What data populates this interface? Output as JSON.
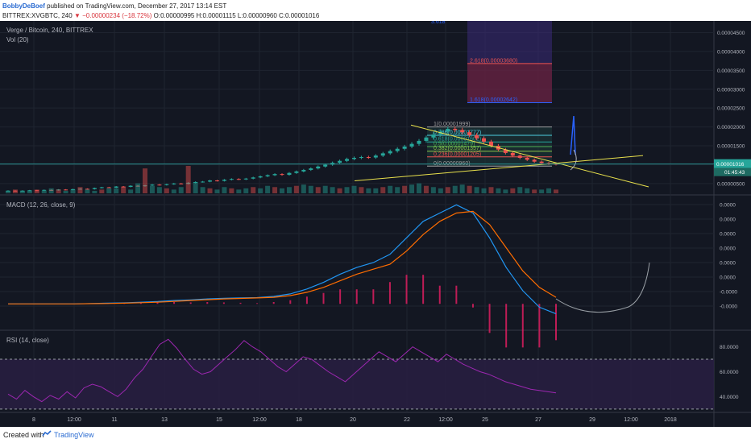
{
  "header": {
    "author": "BobbyDeBoef",
    "published_text": "published on TradingView.com, December 27, 2017 13:14 EST",
    "symbol": "BITTREX:XVGBTC, 240",
    "change_arrow": "▼",
    "change": "−0.00000234 (−18.72%)",
    "ohlc": "O:0.00000995 H:0.00001115 L:0.00000960 C:0.00001016"
  },
  "panes": {
    "main_title": "Verge / Bitcoin, 240, BITTREX",
    "vol_title": "Vol (20)",
    "macd_title": "MACD (12, 26, close, 9)",
    "rsi_title": "RSI (14, close)"
  },
  "footer": {
    "created_with": "Created with",
    "brand": "TradingView",
    "logo_icon": "tradingview-logo-icon"
  },
  "colors": {
    "background": "#131722",
    "up": "#26a69a",
    "down": "#ef5350",
    "macd_line": "#2196f3",
    "signal_line": "#ff6d00",
    "histogram": "#e91e63",
    "rsi_line": "#9c27b0",
    "trendline": "#e8e04c",
    "price_line": "#2a8f8f",
    "forecast": "#9aa0a6"
  },
  "chart_data": [
    {
      "type": "candlestick",
      "pane": "price",
      "title": "Verge / Bitcoin, 240, BITTREX",
      "x_ticks": [
        "8",
        "12:00",
        "11",
        "13",
        "15",
        "12:00",
        "18",
        "20",
        "22",
        "12:00",
        "25",
        "27",
        "29",
        "12:00",
        "2018"
      ],
      "y_ticks": [
        "0.00000500",
        "0.00001000",
        "0.00001500",
        "0.00002000",
        "0.00002500",
        "0.00003000",
        "0.00003500",
        "0.00004000",
        "0.00004500"
      ],
      "ylim": [
        2.4e-06,
        4.81e-05
      ],
      "last_price_label": "0.00001016",
      "countdown_label": "01:45:43",
      "fib_levels": [
        {
          "label": "2.618(0.00003680)",
          "value": 3.68e-05,
          "color": "#ef5350"
        },
        {
          "label": "1.618(0.00002642)",
          "value": 2.642e-05,
          "color": "#2962ff"
        },
        {
          "label": "1(0.00001999)",
          "value": 1.999e-05,
          "color": "#9e9e9e"
        },
        {
          "label": "0.786(0.00001777)",
          "value": 1.777e-05,
          "color": "#4dd0e1"
        },
        {
          "label": "0.618(0.00001602)",
          "value": 1.602e-05,
          "color": "#26a69a"
        },
        {
          "label": "0.5(0.00001479)",
          "value": 1.479e-05,
          "color": "#4caf50"
        },
        {
          "label": "0.382(0.00001357)",
          "value": 1.357e-05,
          "color": "#8bc34a"
        },
        {
          "label": "0.236(0.00001205)",
          "value": 1.205e-05,
          "color": "#ef5350"
        },
        {
          "label": "0(0.00000960)",
          "value": 9.6e-06,
          "color": "#9e9e9e"
        }
      ],
      "top_fib_label": "3.618",
      "close": [
        3.1e-06,
        3e-06,
        3.1e-06,
        3.2e-06,
        3.1e-06,
        3.3e-06,
        3.2e-06,
        3.4e-06,
        3.3e-06,
        3.5e-06,
        3.6e-06,
        3.5e-06,
        3.8e-06,
        4e-06,
        3.9e-06,
        4.2e-06,
        4.1e-06,
        4.4e-06,
        4.3e-06,
        4.5e-06,
        4.7e-06,
        4.6e-06,
        4.8e-06,
        5e-06,
        4.9e-06,
        5.2e-06,
        5.4e-06,
        5.5e-06,
        5.8e-06,
        5.7e-06,
        6e-06,
        6.2e-06,
        6.1e-06,
        6.3e-06,
        6.6e-06,
        6.9e-06,
        7.2e-06,
        7.5e-06,
        7.3e-06,
        7.8e-06,
        8.2e-06,
        8.6e-06,
        9e-06,
        9.5e-06,
        1e-05,
        1.05e-05,
        1.1e-05,
        1.15e-05,
        1.18e-05,
        1.2e-05,
        1.19e-05,
        1.24e-05,
        1.3e-05,
        1.36e-05,
        1.42e-05,
        1.48e-05,
        1.55e-05,
        1.63e-05,
        1.72e-05,
        1.8e-05,
        1.88e-05,
        1.95e-05,
        1.92e-05,
        1.86e-05,
        1.78e-05,
        1.7e-05,
        1.61e-05,
        1.5e-05,
        1.4e-05,
        1.31e-05,
        1.24e-05,
        1.18e-05,
        1.13e-05,
        1.08e-05,
        1.04e-05,
        1.02e-05,
        1.01e-05
      ]
    },
    {
      "type": "bar",
      "pane": "volume",
      "title": "Vol (20)",
      "values": [
        2,
        3,
        2,
        2,
        3,
        2,
        4,
        3,
        2,
        3,
        5,
        3,
        2,
        3,
        4,
        4,
        5,
        3,
        8,
        20,
        6,
        5,
        4,
        3,
        5,
        22,
        9,
        5,
        4,
        3,
        5,
        4,
        3,
        4,
        5,
        4,
        6,
        5,
        4,
        5,
        6,
        7,
        6,
        5,
        6,
        5,
        4,
        5,
        6,
        5,
        4,
        4,
        5,
        6,
        5,
        6,
        7,
        8,
        6,
        5,
        4,
        5,
        6,
        7,
        6,
        5,
        4,
        5,
        4,
        3,
        4,
        5,
        4,
        3,
        3,
        4,
        3
      ]
    },
    {
      "type": "line",
      "pane": "macd",
      "title": "MACD (12, 26, close, 9)",
      "y_ticks": [
        "0.0000",
        "0.0000",
        "0.0000",
        "0.0000",
        "0.0000",
        "0.0000",
        "-0.0000",
        "-0.0000"
      ],
      "series": [
        {
          "name": "MACD",
          "values": [
            0,
            0,
            0,
            0,
            0,
            0.002,
            0.004,
            0.006,
            0.01,
            0.014,
            0.02,
            0.024,
            0.03,
            0.034,
            0.036,
            0.038,
            0.045,
            0.06,
            0.09,
            0.13,
            0.18,
            0.22,
            0.25,
            0.3,
            0.4,
            0.5,
            0.55,
            0.6,
            0.55,
            0.4,
            0.22,
            0.08,
            -0.02,
            -0.06
          ]
        },
        {
          "name": "Signal",
          "values": [
            0,
            0,
            0,
            0,
            0,
            0.001,
            0.002,
            0.004,
            0.007,
            0.01,
            0.015,
            0.02,
            0.025,
            0.03,
            0.033,
            0.036,
            0.04,
            0.05,
            0.07,
            0.1,
            0.14,
            0.18,
            0.21,
            0.24,
            0.32,
            0.42,
            0.5,
            0.55,
            0.56,
            0.48,
            0.34,
            0.2,
            0.1,
            0.04
          ]
        }
      ],
      "histogram": [
        0,
        0,
        0,
        0,
        0,
        0.001,
        0.002,
        0.002,
        0.003,
        0.004,
        0.005,
        0.004,
        0.005,
        0.004,
        0.003,
        0.002,
        0.005,
        0.01,
        0.02,
        0.03,
        0.04,
        0.04,
        0.04,
        0.06,
        0.08,
        0.08,
        0.05,
        0.05,
        -0.01,
        -0.08,
        -0.12,
        -0.12,
        -0.12,
        -0.1
      ]
    },
    {
      "type": "line",
      "pane": "rsi",
      "title": "RSI (14, close)",
      "y_ticks": [
        "40.0000",
        "60.0000",
        "80.0000"
      ],
      "bands": [
        30,
        70
      ],
      "series": [
        {
          "name": "RSI",
          "values": [
            42,
            38,
            45,
            40,
            36,
            41,
            38,
            44,
            39,
            47,
            50,
            48,
            44,
            40,
            46,
            55,
            62,
            72,
            82,
            86,
            79,
            70,
            62,
            58,
            60,
            66,
            72,
            78,
            85,
            80,
            76,
            70,
            64,
            60,
            66,
            72,
            70,
            65,
            60,
            56,
            52,
            58,
            64,
            70,
            76,
            72,
            68,
            74,
            80,
            76,
            72,
            68,
            74,
            70,
            66,
            63,
            60,
            58,
            55,
            52,
            50,
            48,
            46,
            45,
            44,
            43
          ]
        }
      ]
    }
  ]
}
